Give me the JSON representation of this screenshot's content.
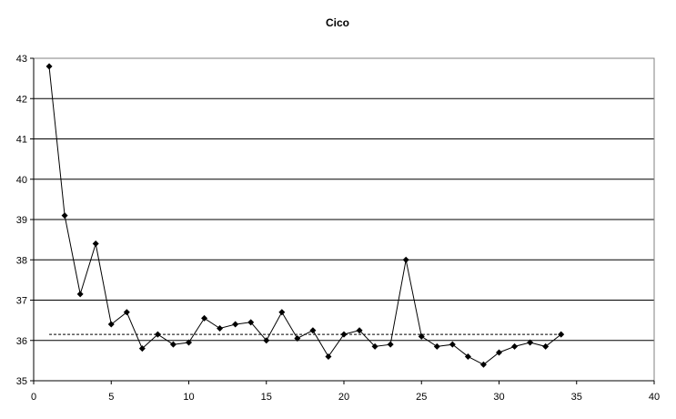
{
  "chart_data": {
    "type": "line",
    "title": "Cico",
    "xlabel": "",
    "ylabel": "",
    "xlim": [
      0,
      40
    ],
    "ylim": [
      35,
      43
    ],
    "x_ticks": [
      "0",
      "5",
      "10",
      "15",
      "20",
      "25",
      "30",
      "35",
      "40"
    ],
    "y_ticks": [
      "35",
      "36",
      "37",
      "38",
      "39",
      "40",
      "41",
      "42",
      "43"
    ],
    "grid": "horizontal",
    "legend": "none",
    "colors": {
      "series": "#000000",
      "grid": "#000000",
      "reference": "#000000"
    },
    "series": [
      {
        "marker": "diamond",
        "x": [
          1,
          2,
          3,
          4,
          5,
          6,
          7,
          8,
          9,
          10,
          11,
          12,
          13,
          14,
          15,
          16,
          17,
          18,
          19,
          20,
          21,
          22,
          23,
          24,
          25,
          26,
          27,
          28,
          29,
          30,
          31,
          32,
          33,
          34
        ],
        "values": [
          42.8,
          39.1,
          37.15,
          38.4,
          36.4,
          36.7,
          35.8,
          36.15,
          35.9,
          35.95,
          36.55,
          36.3,
          36.4,
          36.45,
          36.0,
          36.7,
          36.05,
          36.25,
          35.6,
          36.15,
          36.25,
          35.85,
          35.9,
          38.0,
          36.1,
          35.85,
          35.9,
          35.6,
          35.4,
          35.7,
          35.85,
          35.95,
          35.85,
          36.15
        ]
      }
    ],
    "reference_line": {
      "style": "dashed",
      "y": 36.15,
      "x_start": 1,
      "x_end": 34
    }
  }
}
